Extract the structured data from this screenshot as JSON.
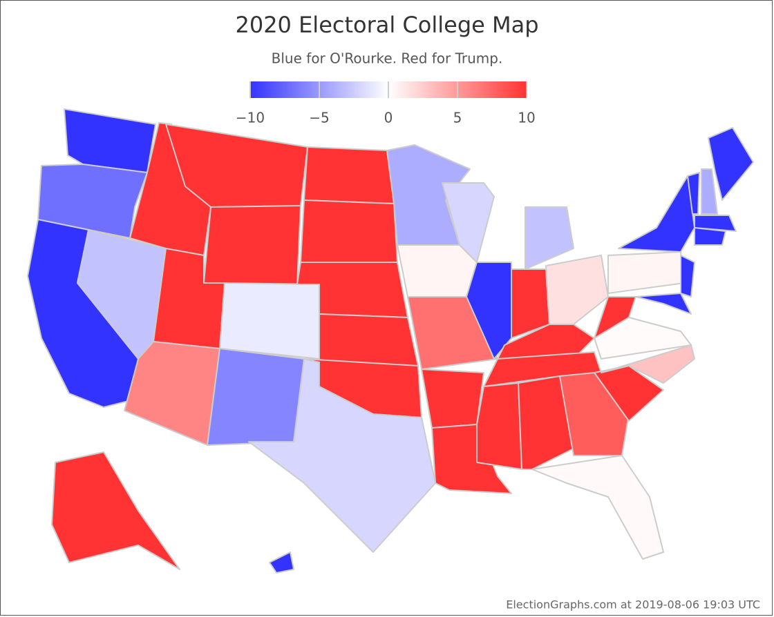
{
  "chart_data": {
    "type": "choropleth",
    "title": "2020 Electoral College Map",
    "subtitle": "Blue for O'Rourke. Red for Trump.",
    "footer": "ElectionGraphs.com at 2019-08-06 19:03 UTC",
    "colorbar": {
      "lim": [
        -10,
        10
      ],
      "ticks": [
        {
          "value": -10,
          "label": "−10"
        },
        {
          "value": -5,
          "label": "−5"
        },
        0,
        5,
        10
      ],
      "colors": [
        "#3333ff",
        "#ffffff",
        "#ff3333"
      ]
    },
    "values": [
      -10,
      -7,
      -10,
      -3,
      10,
      10,
      10,
      10,
      -1,
      6,
      -6,
      10,
      10,
      10,
      10,
      10,
      -2,
      -4,
      0.5,
      7,
      10,
      10,
      -2,
      -10,
      -3,
      10,
      1.5,
      10,
      10,
      10,
      10,
      8,
      0.3,
      10,
      3,
      0.2,
      10,
      0.5,
      -10,
      -10,
      -10,
      -10,
      -4,
      -10,
      -10,
      -10,
      10,
      -10
    ]
  }
}
